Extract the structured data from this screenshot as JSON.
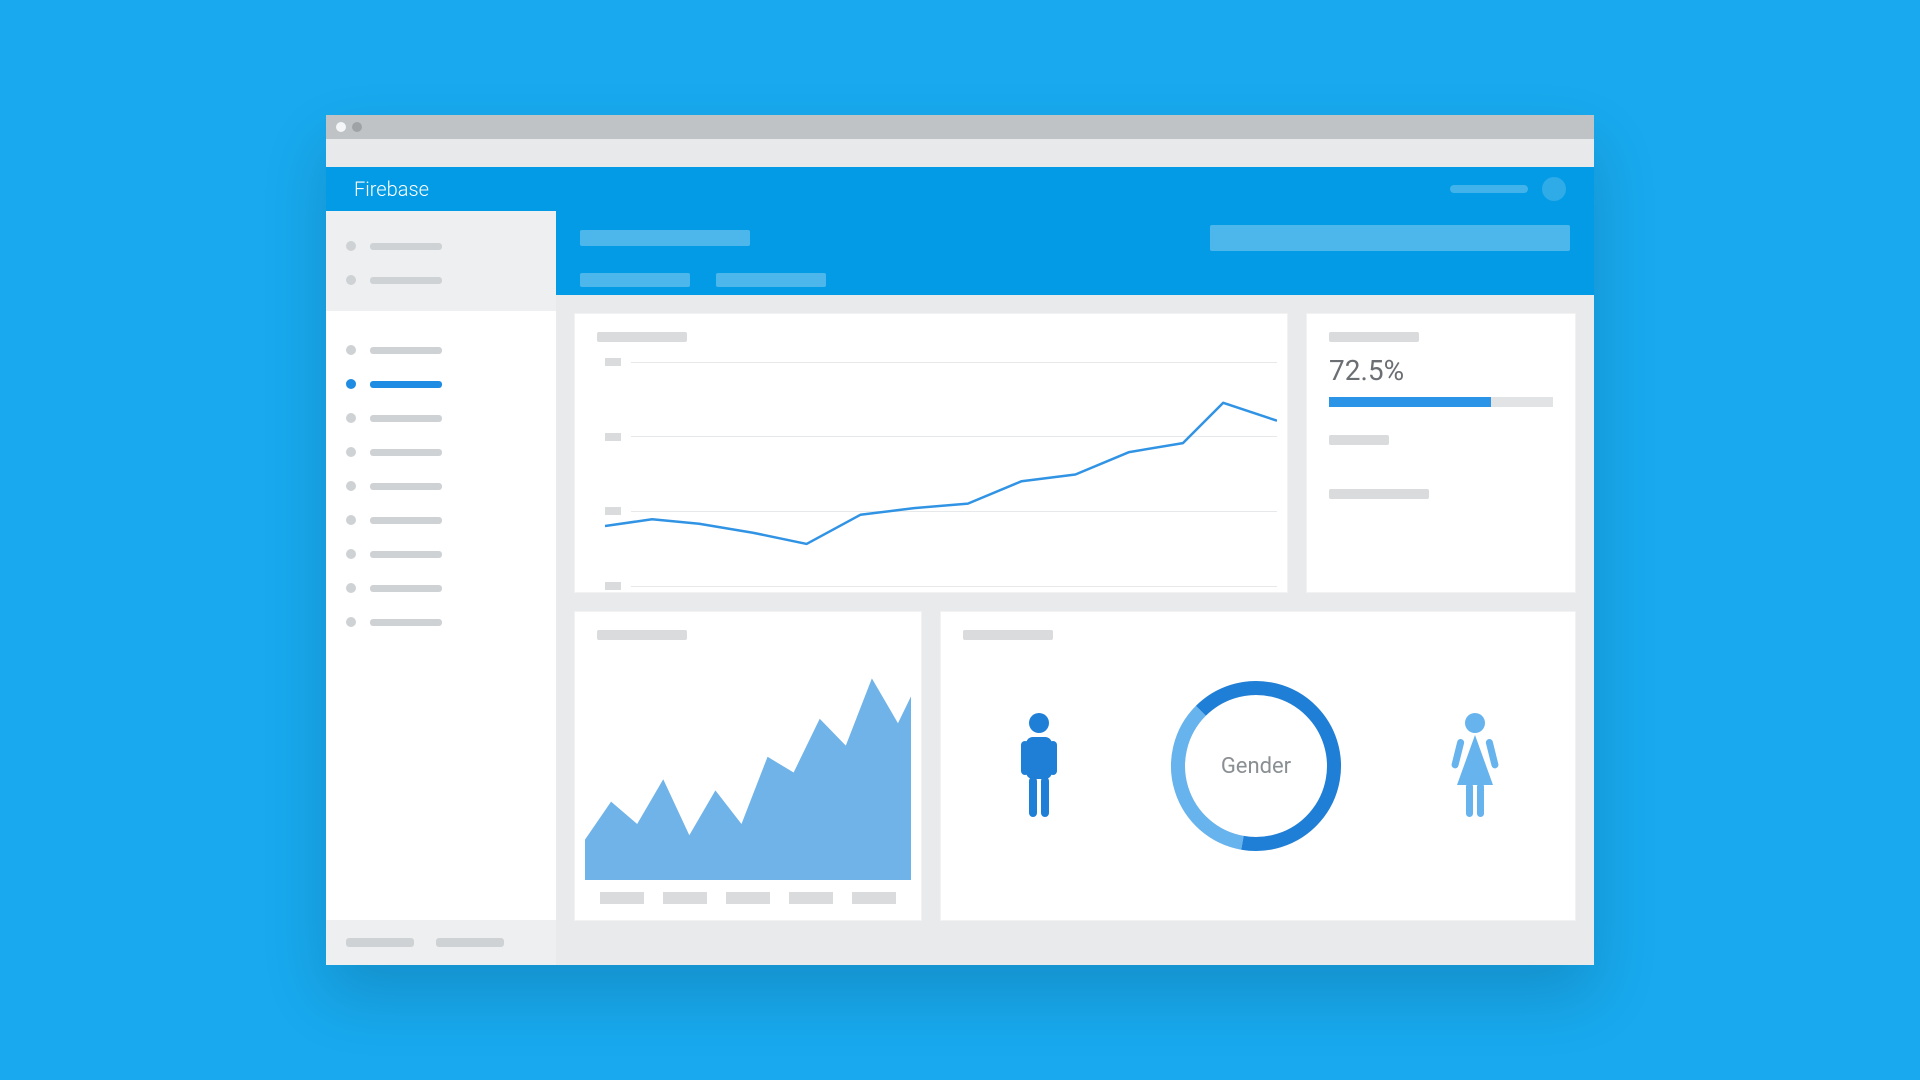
{
  "page_bg": "#18a9ee",
  "colors": {
    "titlebar_bg": "#bfc3c6",
    "urlbar_bg": "#e8e9ea",
    "dot_open": "#f5f6f7",
    "dot_dim": "#9fa3a6",
    "appbar_bg": "#039be5",
    "appbar_pill": "#42b3ea",
    "avatar_bg": "#2fabe8",
    "side_top_bg": "#eeeff0",
    "side_bg": "#ffffff",
    "side_bot_bg": "#eeeff0",
    "nav_dot": "#cfd2d4",
    "nav_bar": "#cfd2d4",
    "accent": "#1f8ce3",
    "subheader_bg": "#039be5",
    "sub_ph": "#4db7ec",
    "content_bg": "#e9eaeb",
    "card_bg": "#ffffff",
    "ph_grey": "#d9dbdc",
    "ph_grey2": "#cfd2d4",
    "gridline": "#e7e8e9",
    "axis_grey": "#d9dbdc",
    "line_stroke": "#3193e4",
    "area_fill": "#6fb3e8",
    "metric_text": "#6b6f73",
    "bar_track": "#e2e3e4",
    "bar_fill": "#2b94e6",
    "donut_bg": "#d7dadd",
    "donut_dark": "#1f7fd6",
    "donut_light": "#66b3ee",
    "gender_txt": "#8a8f93",
    "male_fill": "#1f7fd6",
    "female_fill": "#66b3ee"
  },
  "header": {
    "title": "Firebase"
  },
  "sidebar": {
    "top_items": 2,
    "items": 9,
    "selected_index": 1,
    "footer_items": 2
  },
  "line_chart": {
    "type": "line",
    "gridlines": 4,
    "xlim": [
      0,
      100
    ],
    "ylim": [
      0,
      100
    ],
    "points": [
      [
        0,
        25
      ],
      [
        7,
        28
      ],
      [
        14,
        26
      ],
      [
        22,
        22
      ],
      [
        30,
        17
      ],
      [
        38,
        30
      ],
      [
        46,
        33
      ],
      [
        54,
        35
      ],
      [
        62,
        45
      ],
      [
        70,
        48
      ],
      [
        78,
        58
      ],
      [
        86,
        62
      ],
      [
        92,
        80
      ],
      [
        100,
        72
      ]
    ],
    "stroke_width": 2.5
  },
  "metric": {
    "value_text": "72.5%",
    "percent": 72.5
  },
  "area_chart": {
    "type": "area",
    "xlim": [
      0,
      100
    ],
    "ylim": [
      0,
      100
    ],
    "points": [
      [
        0,
        18
      ],
      [
        8,
        35
      ],
      [
        16,
        25
      ],
      [
        24,
        45
      ],
      [
        32,
        20
      ],
      [
        40,
        40
      ],
      [
        48,
        25
      ],
      [
        56,
        55
      ],
      [
        64,
        48
      ],
      [
        72,
        72
      ],
      [
        80,
        60
      ],
      [
        88,
        90
      ],
      [
        96,
        70
      ],
      [
        100,
        82
      ]
    ],
    "legend_count": 5
  },
  "gender": {
    "label": "Gender",
    "segments": [
      {
        "color_key": "donut_dark",
        "start": -135,
        "sweep": 235
      },
      {
        "color_key": "donut_light",
        "start": 100,
        "sweep": 125
      }
    ],
    "ring_thickness": 14,
    "ring_radius": 78
  }
}
